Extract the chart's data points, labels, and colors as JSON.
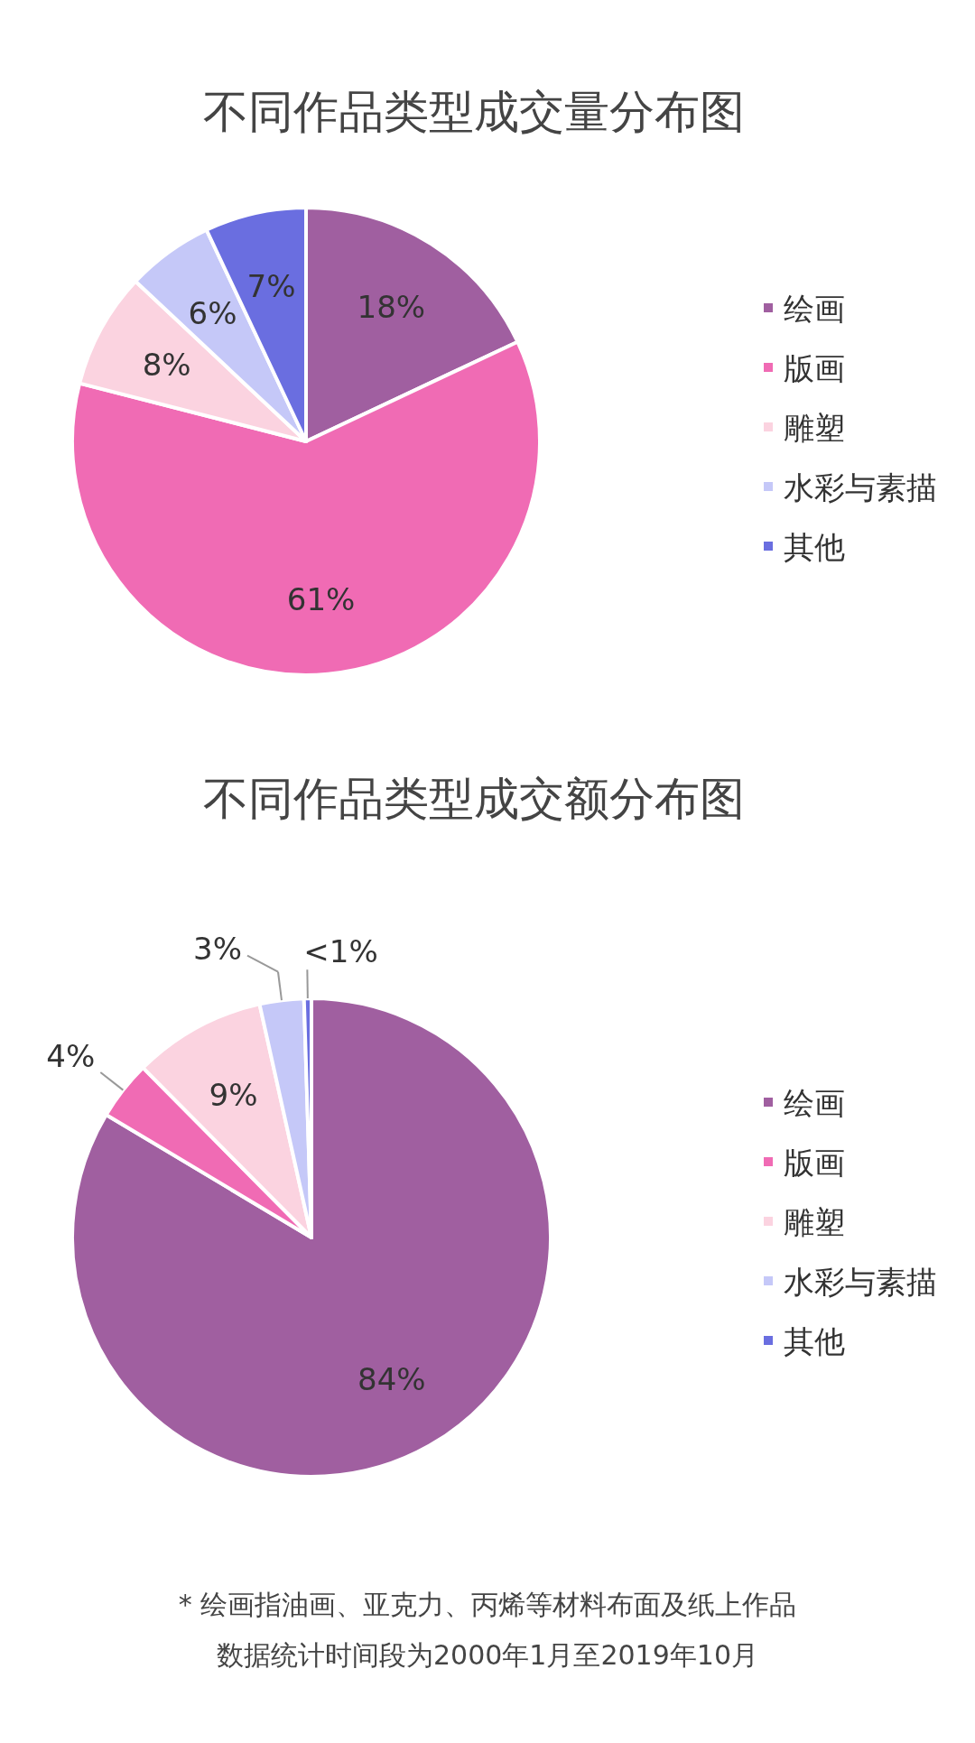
{
  "chart_data": [
    {
      "type": "pie",
      "title": "不同作品类型成交量分布图",
      "categories": [
        "绘画",
        "版画",
        "雕塑",
        "水彩与素描",
        "其他"
      ],
      "values": [
        18,
        61,
        8,
        6,
        7
      ],
      "colors": [
        "#a05fa0",
        "#f06bb4",
        "#fbd3e0",
        "#c5c8f8",
        "#6a6ee0"
      ],
      "value_labels": [
        "18%",
        "61%",
        "8%",
        "6%",
        "7%"
      ],
      "legend": "right"
    },
    {
      "type": "pie",
      "title": "不同作品类型成交额分布图",
      "categories": [
        "绘画",
        "版画",
        "雕塑",
        "水彩与素描",
        "其他"
      ],
      "values": [
        84,
        4,
        9,
        3,
        0.5
      ],
      "colors": [
        "#a05fa0",
        "#f06bb4",
        "#fbd3e0",
        "#c5c8f8",
        "#6a6ee0"
      ],
      "value_labels": [
        "84%",
        "4%",
        "9%",
        "3%",
        "<1%"
      ],
      "legend": "right",
      "annotations": [
        "*  绘画指油画、亚克力、丙烯等材料布面及纸上作品",
        "数据统计时间段为2000年1月至2019年10月"
      ]
    }
  ]
}
